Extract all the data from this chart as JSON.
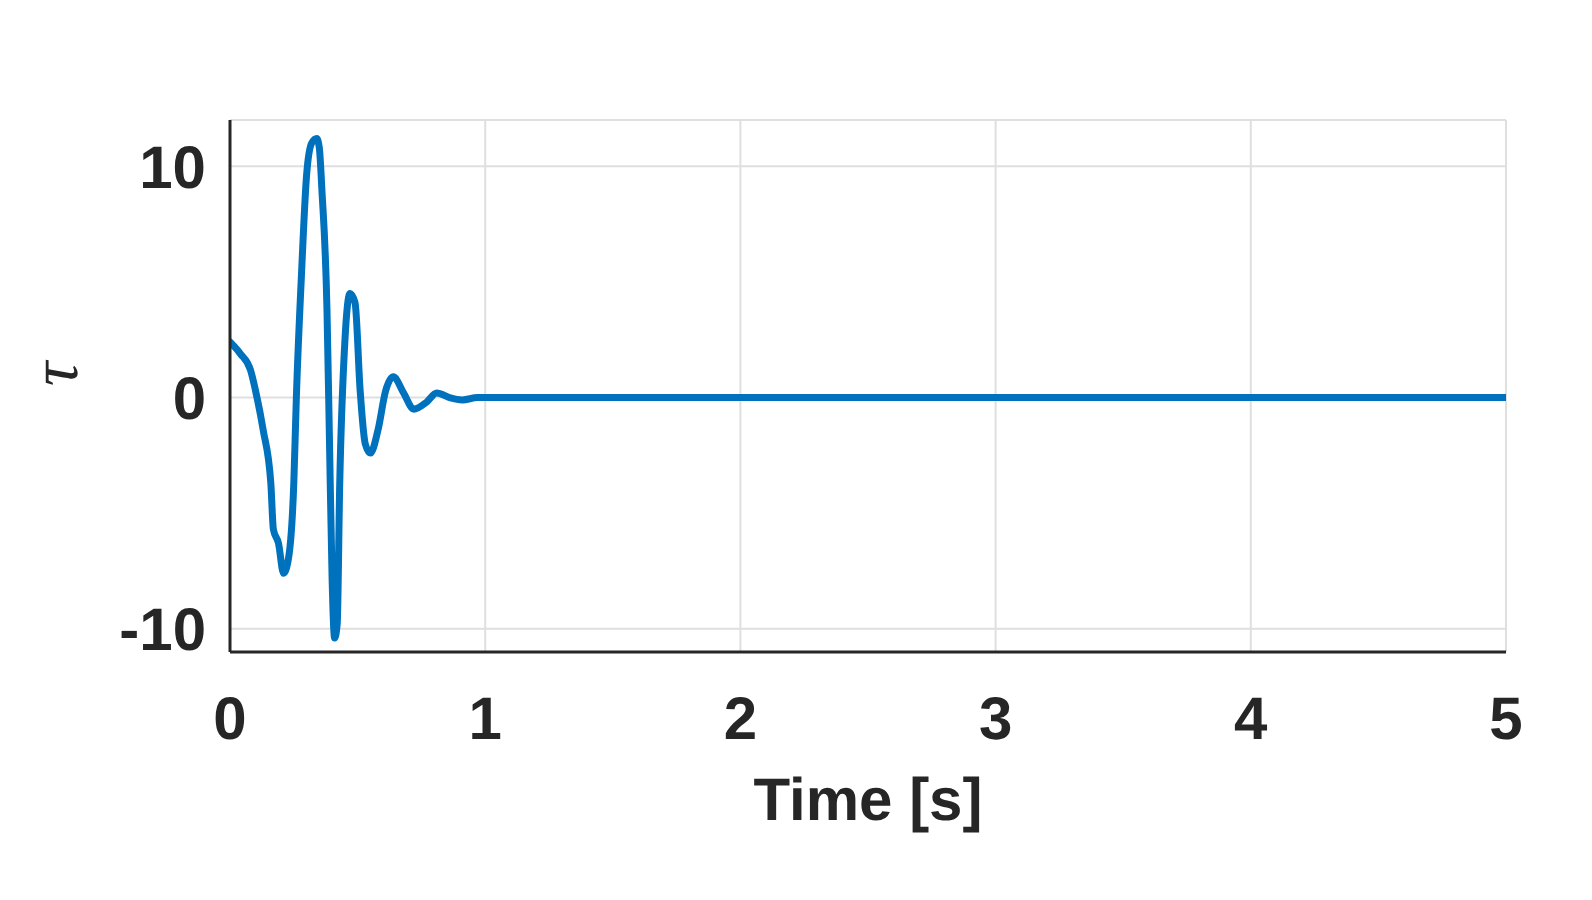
{
  "chart_data": {
    "type": "line",
    "xlabel": "Time [s]",
    "ylabel": "τ",
    "color": "#0072bd",
    "x": [
      0,
      0.04,
      0.08,
      0.1,
      0.13,
      0.16,
      0.17,
      0.19,
      0.21,
      0.23,
      0.25,
      0.26,
      0.28,
      0.3,
      0.32,
      0.34,
      0.35,
      0.36,
      0.38,
      0.39,
      0.4,
      0.41,
      0.42,
      0.43,
      0.45,
      0.47,
      0.49,
      0.51,
      0.53,
      0.55,
      0.58,
      0.61,
      0.64,
      0.68,
      0.72,
      0.77,
      0.81,
      0.86,
      0.91,
      0.97,
      1.1,
      1.5,
      2,
      2.5,
      3,
      3.5,
      4,
      4.5,
      5
    ],
    "values": [
      2.4,
      1.9,
      1.2,
      0.3,
      -1.4,
      -3.7,
      -5.7,
      -6.3,
      -7.6,
      -6.9,
      -3.7,
      0,
      5.3,
      9.6,
      11,
      11.2,
      10.8,
      9,
      3.8,
      -2,
      -7.8,
      -10.4,
      -9.8,
      -3.7,
      2.4,
      4.5,
      4.1,
      0.3,
      -2,
      -2.4,
      -1.4,
      0.3,
      0.9,
      0.2,
      -0.5,
      -0.2,
      0.2,
      0,
      -0.1,
      0,
      0,
      0,
      0,
      0,
      0,
      0,
      0,
      0,
      0
    ],
    "xlim": [
      0,
      5
    ],
    "xticks": [
      0,
      1,
      2,
      3,
      4,
      5
    ],
    "ylim": [
      -11,
      12
    ],
    "yticks": [
      -10,
      0,
      10
    ],
    "grid": true
  }
}
